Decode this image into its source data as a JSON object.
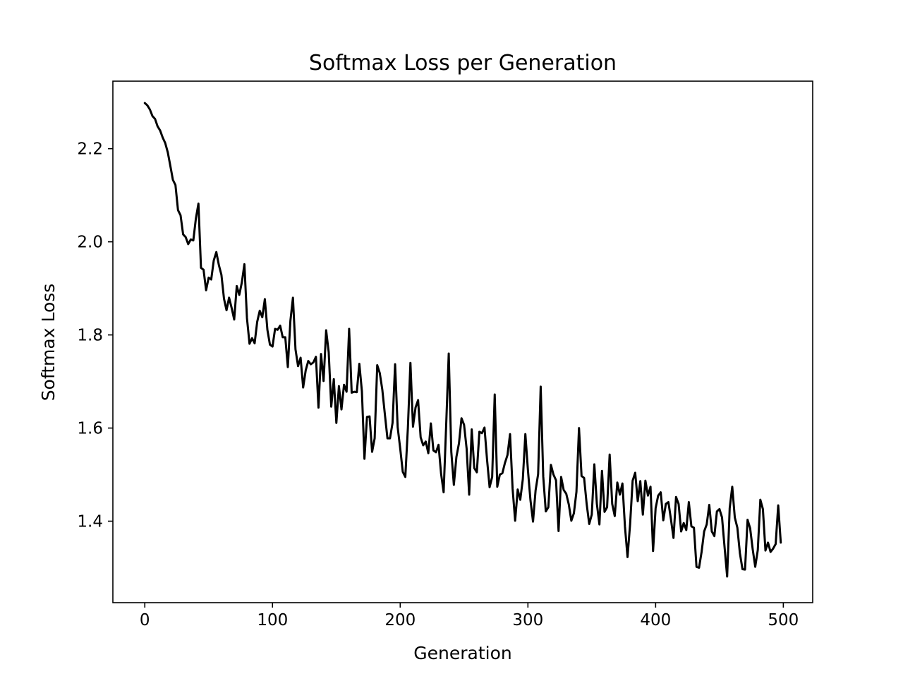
{
  "chart_data": {
    "type": "line",
    "title": "Softmax Loss per Generation",
    "xlabel": "Generation",
    "ylabel": "Softmax Loss",
    "xlim": [
      -25,
      523
    ],
    "ylim": [
      1.225,
      2.345
    ],
    "xticks": [
      0,
      100,
      200,
      300,
      400,
      500
    ],
    "yticks": [
      1.4,
      1.6,
      1.8,
      2.0,
      2.2
    ],
    "xtick_labels": [
      "0",
      "100",
      "200",
      "300",
      "400",
      "500"
    ],
    "ytick_labels": [
      "1.4",
      "1.6",
      "1.8",
      "2.0",
      "2.2"
    ],
    "grid": false,
    "legend": "none",
    "line_color": "#000000",
    "series": [
      {
        "x": [
          0,
          2,
          4,
          6,
          8,
          10,
          12,
          14,
          16,
          18,
          20,
          22,
          24,
          26,
          28,
          30,
          32,
          34,
          36,
          38,
          40,
          42,
          44,
          46,
          48,
          50,
          52,
          54,
          56,
          58,
          60,
          62,
          64,
          66,
          68,
          70,
          72,
          74,
          76,
          78,
          80,
          82,
          84,
          86,
          88,
          90,
          92,
          94,
          96,
          98,
          100,
          102,
          104,
          106,
          108,
          110,
          112,
          114,
          116,
          118,
          120,
          122,
          124,
          126,
          128,
          130,
          132,
          134,
          136,
          138,
          140,
          142,
          144,
          146,
          148,
          150,
          152,
          154,
          156,
          158,
          160,
          162,
          164,
          166,
          168,
          170,
          172,
          174,
          176,
          178,
          180,
          182,
          184,
          186,
          188,
          190,
          192,
          194,
          196,
          198,
          200,
          202,
          204,
          206,
          208,
          210,
          212,
          214,
          216,
          218,
          220,
          222,
          224,
          226,
          228,
          230,
          232,
          234,
          236,
          238,
          240,
          242,
          244,
          246,
          248,
          250,
          252,
          254,
          256,
          258,
          260,
          262,
          264,
          266,
          268,
          270,
          272,
          274,
          276,
          278,
          280,
          282,
          284,
          286,
          288,
          290,
          292,
          294,
          296,
          298,
          300,
          302,
          304,
          306,
          308,
          310,
          312,
          314,
          316,
          318,
          320,
          322,
          324,
          326,
          328,
          330,
          332,
          334,
          336,
          338,
          340,
          342,
          344,
          346,
          348,
          350,
          352,
          354,
          356,
          358,
          360,
          362,
          364,
          366,
          368,
          370,
          372,
          374,
          376,
          378,
          380,
          382,
          384,
          386,
          388,
          390,
          392,
          394,
          396,
          398,
          400,
          402,
          404,
          406,
          408,
          410,
          412,
          414,
          416,
          418,
          420,
          422,
          424,
          426,
          428,
          430,
          432,
          434,
          436,
          438,
          440,
          442,
          444,
          446,
          448,
          450,
          452,
          454,
          456,
          458,
          460,
          462,
          464,
          466,
          468,
          470,
          472,
          474,
          476,
          478,
          480,
          482,
          484,
          486,
          488,
          490,
          492,
          494,
          496,
          498
        ],
        "y": [
          2.298,
          2.293,
          2.284,
          2.27,
          2.264,
          2.248,
          2.239,
          2.224,
          2.212,
          2.192,
          2.163,
          2.133,
          2.122,
          2.068,
          2.057,
          2.016,
          2.01,
          1.995,
          2.005,
          2.003,
          2.05,
          2.082,
          1.944,
          1.94,
          1.896,
          1.923,
          1.919,
          1.96,
          1.978,
          1.95,
          1.929,
          1.878,
          1.853,
          1.88,
          1.858,
          1.833,
          1.905,
          1.886,
          1.913,
          1.952,
          1.836,
          1.781,
          1.793,
          1.782,
          1.828,
          1.852,
          1.838,
          1.877,
          1.811,
          1.779,
          1.775,
          1.813,
          1.811,
          1.82,
          1.795,
          1.795,
          1.731,
          1.83,
          1.88,
          1.769,
          1.733,
          1.751,
          1.687,
          1.724,
          1.744,
          1.737,
          1.741,
          1.753,
          1.644,
          1.759,
          1.701,
          1.81,
          1.763,
          1.646,
          1.705,
          1.611,
          1.69,
          1.64,
          1.693,
          1.678,
          1.813,
          1.676,
          1.678,
          1.677,
          1.738,
          1.679,
          1.534,
          1.624,
          1.625,
          1.549,
          1.578,
          1.735,
          1.718,
          1.682,
          1.629,
          1.578,
          1.578,
          1.611,
          1.737,
          1.602,
          1.556,
          1.506,
          1.495,
          1.6,
          1.74,
          1.603,
          1.644,
          1.66,
          1.58,
          1.563,
          1.571,
          1.546,
          1.61,
          1.552,
          1.548,
          1.564,
          1.502,
          1.462,
          1.607,
          1.76,
          1.549,
          1.478,
          1.538,
          1.567,
          1.621,
          1.607,
          1.556,
          1.457,
          1.597,
          1.514,
          1.505,
          1.592,
          1.589,
          1.601,
          1.532,
          1.473,
          1.495,
          1.672,
          1.474,
          1.5,
          1.503,
          1.525,
          1.542,
          1.587,
          1.47,
          1.401,
          1.468,
          1.446,
          1.49,
          1.587,
          1.51,
          1.445,
          1.399,
          1.466,
          1.501,
          1.689,
          1.496,
          1.421,
          1.43,
          1.521,
          1.5,
          1.488,
          1.379,
          1.495,
          1.467,
          1.459,
          1.436,
          1.401,
          1.417,
          1.463,
          1.6,
          1.497,
          1.493,
          1.437,
          1.394,
          1.414,
          1.522,
          1.437,
          1.393,
          1.508,
          1.42,
          1.43,
          1.543,
          1.437,
          1.411,
          1.483,
          1.457,
          1.481,
          1.388,
          1.323,
          1.393,
          1.487,
          1.504,
          1.443,
          1.486,
          1.414,
          1.487,
          1.455,
          1.474,
          1.336,
          1.428,
          1.455,
          1.462,
          1.402,
          1.437,
          1.441,
          1.404,
          1.364,
          1.452,
          1.437,
          1.378,
          1.396,
          1.381,
          1.441,
          1.389,
          1.386,
          1.302,
          1.3,
          1.334,
          1.378,
          1.393,
          1.435,
          1.378,
          1.368,
          1.421,
          1.426,
          1.408,
          1.344,
          1.281,
          1.428,
          1.474,
          1.408,
          1.386,
          1.331,
          1.297,
          1.296,
          1.403,
          1.385,
          1.34,
          1.302,
          1.338,
          1.446,
          1.426,
          1.337,
          1.354,
          1.334,
          1.341,
          1.351,
          1.434,
          1.354
        ]
      }
    ]
  }
}
